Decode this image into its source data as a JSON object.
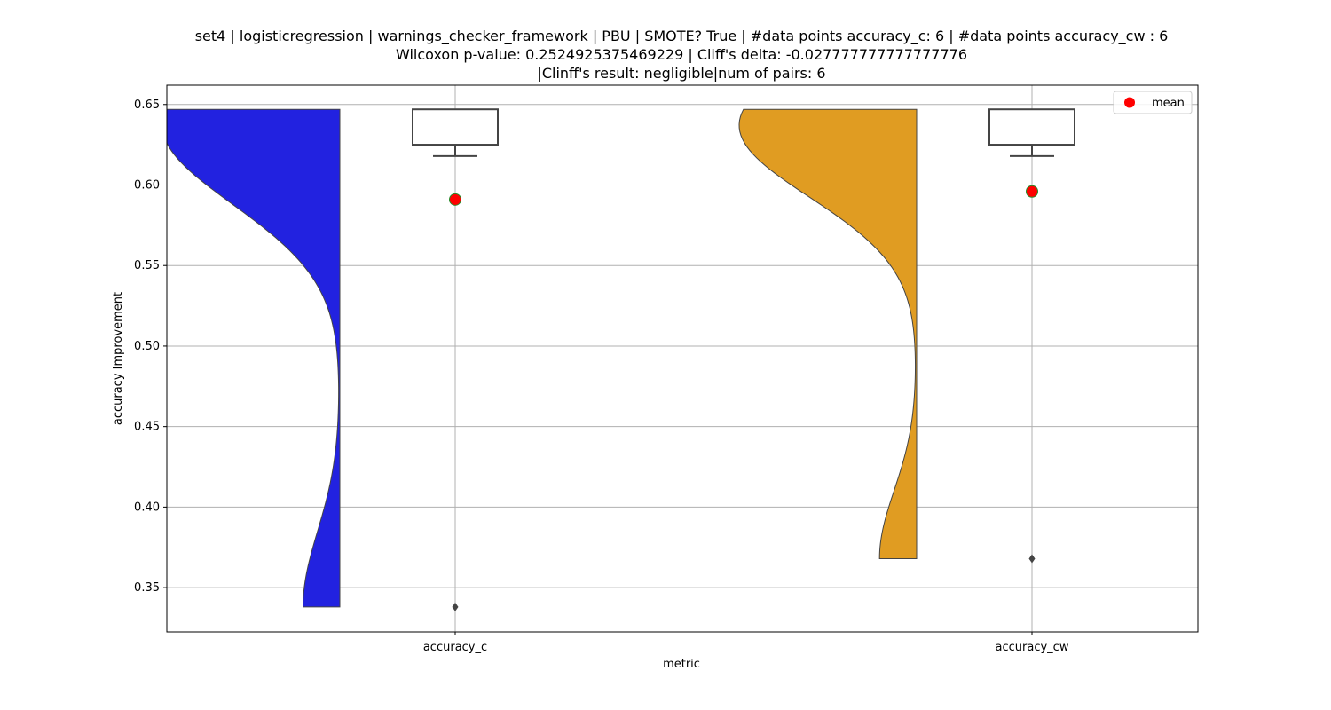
{
  "chart_data": {
    "type": "violin+box",
    "title_lines": [
      "set4 | logisticregression | warnings_checker_framework | PBU | SMOTE? True | #data points accuracy_c: 6 | #data points accuracy_cw : 6",
      "Wilcoxon p-value: 0.2524925375469229 | Cliff's delta: -0.027777777777777776",
      "|Clinff's result: negligible|num of pairs: 6"
    ],
    "xlabel": "metric",
    "ylabel": "accuracy Improvement",
    "ylim": [
      0.3225,
      0.662
    ],
    "yticks": [
      0.35,
      0.4,
      0.45,
      0.5,
      0.55,
      0.6,
      0.65
    ],
    "ytick_labels": [
      "0.35",
      "0.40",
      "0.45",
      "0.50",
      "0.55",
      "0.60",
      "0.65"
    ],
    "grid": true,
    "legend": {
      "label": "mean",
      "placement": "top-right",
      "marker_color": "#ff0000"
    },
    "categories": [
      "accuracy_c",
      "accuracy_cw"
    ],
    "series": [
      {
        "name": "accuracy_c",
        "violin_color": "#2222e0",
        "violin_side": "left",
        "violin_range": [
          0.338,
          0.647
        ],
        "box": {
          "q1": 0.625,
          "median": 0.625,
          "q3": 0.647,
          "whisker_low": 0.618,
          "whisker_high": 0.647
        },
        "outliers": [
          0.338
        ],
        "mean": 0.591
      },
      {
        "name": "accuracy_cw",
        "violin_color": "#e09c22",
        "violin_side": "left",
        "violin_range": [
          0.368,
          0.647
        ],
        "box": {
          "q1": 0.625,
          "median": 0.625,
          "q3": 0.647,
          "whisker_low": 0.618,
          "whisker_high": 0.647
        },
        "outliers": [
          0.368
        ],
        "mean": 0.596
      }
    ]
  }
}
